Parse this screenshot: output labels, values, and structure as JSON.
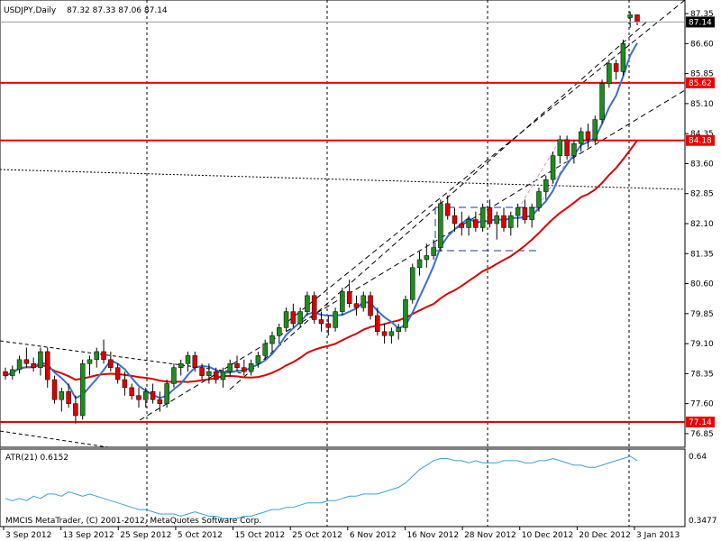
{
  "header": {
    "symbol_label": "USDJPY,Daily",
    "ohlc_label": "87.32 87.33 87.06 87.14"
  },
  "indicator": {
    "atr_label": "ATR(21) 0.6152",
    "atr_max_label": "0.64",
    "atr_min_label": "0.3477"
  },
  "footer": {
    "copyright": "MMCIS MetaTrader, (C) 2001-2012, MetaQuotes Software Corp."
  },
  "colors": {
    "bull": "#1e8c1e",
    "bear": "#dd0000",
    "wick": "#000000",
    "ma_fast": "#3a6fcf",
    "ma_slow": "#dd0000",
    "level": "#ee0000",
    "atr": "#3ca0dc",
    "current_price_bg": "#000000"
  },
  "chart_data": {
    "type": "candlestick",
    "price_axis": {
      "ylim": [
        76.6,
        87.6
      ],
      "ticks": [
        "87.35",
        "86.60",
        "85.85",
        "85.10",
        "84.35",
        "83.60",
        "82.85",
        "82.10",
        "81.35",
        "80.60",
        "79.85",
        "79.10",
        "78.35",
        "77.60",
        "76.85"
      ]
    },
    "date_axis": {
      "labels": [
        "3 Sep 2012",
        "13 Sep 2012",
        "25 Sep 2012",
        "5 Oct 2012",
        "15 Oct 2012",
        "25 Oct 2012",
        "6 Nov 2012",
        "16 Nov 2012",
        "28 Nov 2012",
        "10 Dec 2012",
        "20 Dec 2012",
        "3 Jan 2013"
      ]
    },
    "current_price": "87.14",
    "levels": [
      {
        "value": 85.62,
        "label": "85.62"
      },
      {
        "value": 84.18,
        "label": "84.18"
      },
      {
        "value": 77.14,
        "label": "77.14"
      }
    ],
    "candles": [
      [
        78.4,
        78.5,
        78.2,
        78.3
      ],
      [
        78.3,
        78.55,
        78.2,
        78.45
      ],
      [
        78.45,
        78.8,
        78.35,
        78.7
      ],
      [
        78.7,
        79.0,
        78.5,
        78.6
      ],
      [
        78.6,
        78.75,
        78.4,
        78.5
      ],
      [
        78.5,
        79.0,
        78.3,
        78.9
      ],
      [
        78.9,
        79.0,
        78.0,
        78.2
      ],
      [
        78.2,
        78.3,
        77.6,
        77.7
      ],
      [
        77.7,
        78.0,
        77.4,
        77.9
      ],
      [
        77.9,
        78.1,
        77.5,
        77.6
      ],
      [
        77.6,
        77.8,
        77.1,
        77.3
      ],
      [
        77.3,
        78.7,
        77.2,
        78.6
      ],
      [
        78.6,
        78.8,
        78.3,
        78.7
      ],
      [
        78.7,
        79.0,
        78.5,
        78.9
      ],
      [
        78.9,
        79.2,
        78.6,
        78.7
      ],
      [
        78.7,
        78.9,
        78.4,
        78.5
      ],
      [
        78.5,
        78.6,
        78.1,
        78.2
      ],
      [
        78.2,
        78.4,
        77.8,
        78.0
      ],
      [
        78.0,
        78.1,
        77.7,
        77.8
      ],
      [
        77.8,
        78.0,
        77.5,
        77.7
      ],
      [
        77.7,
        78.0,
        77.5,
        77.9
      ],
      [
        77.9,
        78.1,
        77.6,
        77.7
      ],
      [
        77.7,
        77.9,
        77.4,
        77.6
      ],
      [
        77.6,
        78.2,
        77.5,
        78.1
      ],
      [
        78.1,
        78.6,
        78.0,
        78.5
      ],
      [
        78.5,
        78.7,
        78.3,
        78.6
      ],
      [
        78.6,
        78.9,
        78.4,
        78.8
      ],
      [
        78.8,
        78.9,
        78.4,
        78.5
      ],
      [
        78.5,
        78.6,
        78.2,
        78.3
      ],
      [
        78.3,
        78.6,
        78.1,
        78.4
      ],
      [
        78.4,
        78.5,
        78.1,
        78.2
      ],
      [
        78.2,
        78.5,
        78.0,
        78.4
      ],
      [
        78.4,
        78.7,
        78.3,
        78.6
      ],
      [
        78.6,
        78.8,
        78.4,
        78.5
      ],
      [
        78.5,
        78.7,
        78.3,
        78.4
      ],
      [
        78.4,
        78.7,
        78.3,
        78.6
      ],
      [
        78.6,
        78.9,
        78.5,
        78.8
      ],
      [
        78.8,
        79.2,
        78.7,
        79.1
      ],
      [
        79.1,
        79.4,
        78.9,
        79.3
      ],
      [
        79.3,
        79.6,
        79.1,
        79.5
      ],
      [
        79.5,
        80.0,
        79.4,
        79.9
      ],
      [
        79.9,
        80.1,
        79.5,
        79.6
      ],
      [
        79.6,
        80.0,
        79.5,
        79.9
      ],
      [
        79.9,
        80.4,
        79.8,
        80.3
      ],
      [
        80.3,
        80.4,
        79.6,
        79.7
      ],
      [
        79.7,
        79.9,
        79.4,
        79.6
      ],
      [
        79.6,
        79.8,
        79.3,
        79.5
      ],
      [
        79.5,
        80.0,
        79.4,
        79.9
      ],
      [
        79.9,
        80.5,
        79.8,
        80.4
      ],
      [
        80.4,
        80.7,
        80.0,
        80.1
      ],
      [
        80.1,
        80.3,
        79.8,
        80.0
      ],
      [
        80.0,
        80.4,
        79.9,
        80.3
      ],
      [
        80.3,
        80.4,
        79.7,
        79.8
      ],
      [
        79.8,
        80.0,
        79.3,
        79.4
      ],
      [
        79.4,
        79.6,
        79.1,
        79.3
      ],
      [
        79.3,
        79.5,
        79.1,
        79.4
      ],
      [
        79.4,
        79.6,
        79.2,
        79.5
      ],
      [
        79.5,
        80.3,
        79.4,
        80.2
      ],
      [
        80.2,
        81.1,
        80.1,
        81.0
      ],
      [
        81.0,
        81.4,
        80.8,
        81.2
      ],
      [
        81.2,
        81.6,
        81.0,
        81.3
      ],
      [
        81.3,
        81.7,
        81.2,
        81.5
      ],
      [
        81.5,
        82.7,
        81.4,
        82.6
      ],
      [
        82.6,
        82.8,
        82.2,
        82.3
      ],
      [
        82.3,
        82.5,
        81.9,
        82.1
      ],
      [
        82.1,
        82.4,
        81.8,
        82.0
      ],
      [
        82.0,
        82.3,
        81.8,
        82.2
      ],
      [
        82.2,
        82.4,
        81.9,
        82.0
      ],
      [
        82.0,
        82.6,
        81.9,
        82.5
      ],
      [
        82.5,
        82.7,
        82.0,
        82.1
      ],
      [
        82.1,
        82.4,
        81.7,
        82.3
      ],
      [
        82.3,
        82.5,
        81.9,
        82.0
      ],
      [
        82.0,
        82.4,
        81.8,
        82.3
      ],
      [
        82.3,
        82.6,
        82.0,
        82.5
      ],
      [
        82.5,
        82.7,
        82.1,
        82.2
      ],
      [
        82.2,
        82.6,
        82.0,
        82.5
      ],
      [
        82.5,
        83.0,
        82.4,
        82.9
      ],
      [
        82.9,
        83.3,
        82.7,
        83.2
      ],
      [
        83.2,
        83.9,
        83.1,
        83.8
      ],
      [
        83.8,
        84.3,
        83.6,
        84.2
      ],
      [
        84.2,
        84.3,
        83.7,
        83.8
      ],
      [
        83.8,
        84.2,
        83.6,
        84.1
      ],
      [
        84.1,
        84.5,
        83.9,
        84.4
      ],
      [
        84.4,
        84.6,
        84.0,
        84.2
      ],
      [
        84.2,
        84.8,
        84.1,
        84.7
      ],
      [
        84.7,
        85.7,
        84.6,
        85.6
      ],
      [
        85.6,
        86.2,
        85.5,
        86.1
      ],
      [
        86.1,
        86.2,
        85.7,
        85.9
      ],
      [
        85.9,
        86.7,
        85.8,
        86.6
      ],
      [
        87.25,
        87.4,
        87.0,
        87.32
      ],
      [
        87.32,
        87.33,
        87.06,
        87.14
      ]
    ],
    "atr_ylim": [
      0.3477,
      0.64
    ],
    "atr_values": [
      0.45,
      0.44,
      0.45,
      0.44,
      0.46,
      0.45,
      0.47,
      0.47,
      0.46,
      0.48,
      0.47,
      0.46,
      0.47,
      0.46,
      0.45,
      0.44,
      0.43,
      0.42,
      0.41,
      0.4,
      0.4,
      0.39,
      0.38,
      0.38,
      0.38,
      0.37,
      0.38,
      0.39,
      0.38,
      0.37,
      0.37,
      0.36,
      0.36,
      0.36,
      0.37,
      0.37,
      0.38,
      0.39,
      0.4,
      0.4,
      0.41,
      0.41,
      0.42,
      0.43,
      0.43,
      0.43,
      0.44,
      0.44,
      0.45,
      0.46,
      0.46,
      0.47,
      0.47,
      0.47,
      0.48,
      0.49,
      0.5,
      0.52,
      0.55,
      0.58,
      0.6,
      0.62,
      0.63,
      0.63,
      0.62,
      0.62,
      0.61,
      0.62,
      0.61,
      0.61,
      0.61,
      0.62,
      0.62,
      0.62,
      0.61,
      0.61,
      0.62,
      0.62,
      0.63,
      0.62,
      0.61,
      0.6,
      0.6,
      0.59,
      0.59,
      0.6,
      0.61,
      0.62,
      0.63,
      0.64,
      0.62
    ]
  }
}
